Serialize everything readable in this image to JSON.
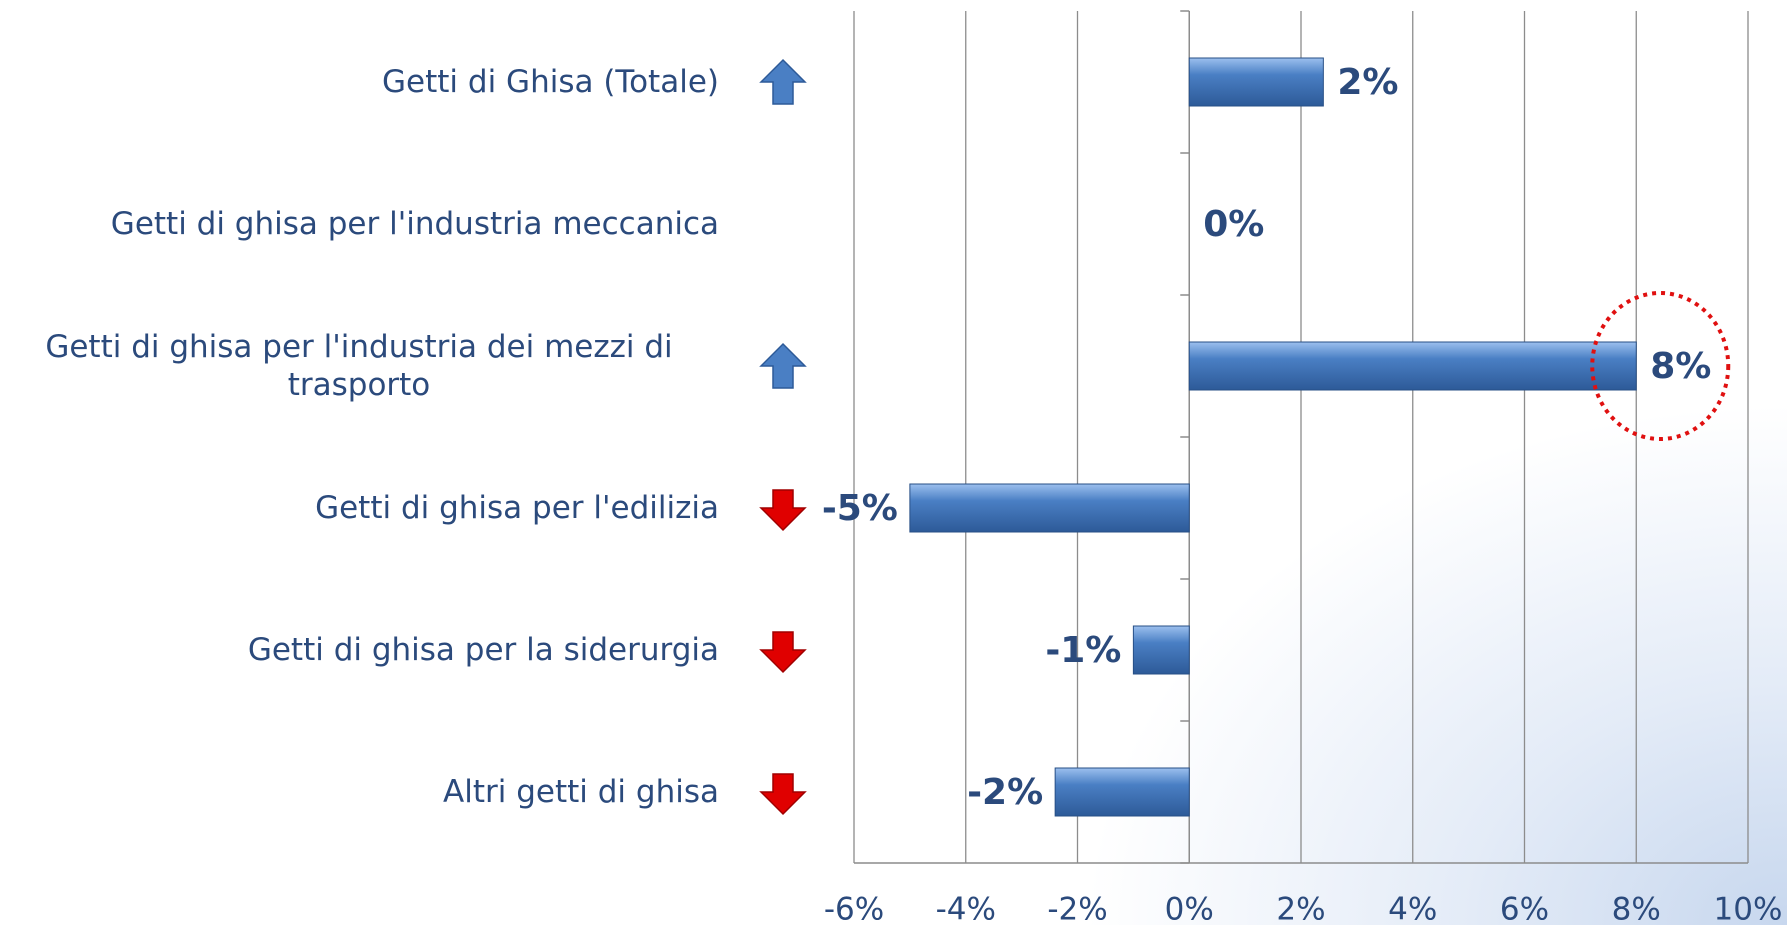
{
  "chart_data": {
    "type": "barh",
    "categories": [
      "Getti di Ghisa (Totale)",
      "Getti di ghisa per l'industria meccanica",
      "Getti di ghisa per l'industria dei mezzi di trasporto",
      "Getti di ghisa per l'edilizia",
      "Getti di ghisa per la siderurgia",
      "Altri getti di ghisa"
    ],
    "values": [
      2.4,
      0,
      8,
      -5,
      -1,
      -2.4
    ],
    "value_labels": [
      "2%",
      "0%",
      "8%",
      "-5%",
      "-1%",
      "-2%"
    ],
    "arrows": [
      "up",
      null,
      "up",
      "down",
      "down",
      "down"
    ],
    "color": "#4a7fc4",
    "xlim": [
      -6,
      10
    ],
    "xticks": [
      {
        "value": -6,
        "label": "-6%"
      },
      {
        "value": -4,
        "label": "-4%"
      },
      {
        "value": -2,
        "label": "-2%"
      },
      {
        "value": 0,
        "label": "0%"
      },
      {
        "value": 2,
        "label": "2%"
      },
      {
        "value": 4,
        "label": "4%"
      },
      {
        "value": 6,
        "label": "6%"
      },
      {
        "value": 8,
        "label": "8%"
      },
      {
        "value": 10,
        "label": "10%"
      }
    ],
    "grid": true
  }
}
